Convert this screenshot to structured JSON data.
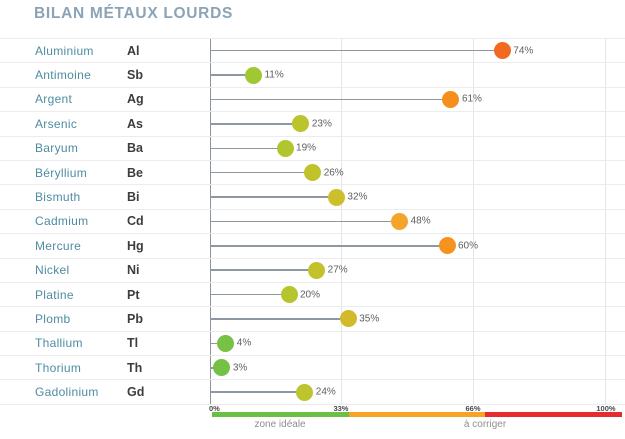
{
  "title": "BILAN MÉTAUX LOURDS",
  "colors": {
    "title": "#8ba3b4",
    "metal_name": "#4e8ca1",
    "metal_symbol": "#3d3d3d",
    "stem": "#8f98a0",
    "axis_line": "#8d969d"
  },
  "chart_data": {
    "type": "bar",
    "style": "horizontal lollipop / dot chart",
    "unit": "%",
    "xlim": [
      0,
      100
    ],
    "ticks": [
      "0%",
      "33%",
      "66%",
      "100%"
    ],
    "tick_values": [
      0,
      33,
      66,
      100
    ],
    "grid": "vertical gridlines at ticks",
    "rows": [
      {
        "name": "Aluminium",
        "symbol": "Al",
        "value": 74,
        "label": "74%",
        "color": "#f26a21"
      },
      {
        "name": "Antimoine",
        "symbol": "Sb",
        "value": 11,
        "label": "11%",
        "color": "#9fc832"
      },
      {
        "name": "Argent",
        "symbol": "Ag",
        "value": 61,
        "label": "61%",
        "color": "#f68e1e"
      },
      {
        "name": "Arsenic",
        "symbol": "As",
        "value": 23,
        "label": "23%",
        "color": "#bcc42d"
      },
      {
        "name": "Baryum",
        "symbol": "Ba",
        "value": 19,
        "label": "19%",
        "color": "#b2c52f"
      },
      {
        "name": "Béryllium",
        "symbol": "Be",
        "value": 26,
        "label": "26%",
        "color": "#c1c32c"
      },
      {
        "name": "Bismuth",
        "symbol": "Bi",
        "value": 32,
        "label": "32%",
        "color": "#cdbf2b"
      },
      {
        "name": "Cadmium",
        "symbol": "Cd",
        "value": 48,
        "label": "48%",
        "color": "#f2a52a"
      },
      {
        "name": "Mercure",
        "symbol": "Hg",
        "value": 60,
        "label": "60%",
        "color": "#f6921e"
      },
      {
        "name": "Nickel",
        "symbol": "Ni",
        "value": 27,
        "label": "27%",
        "color": "#c2c32c"
      },
      {
        "name": "Platine",
        "symbol": "Pt",
        "value": 20,
        "label": "20%",
        "color": "#b6c52e"
      },
      {
        "name": "Plomb",
        "symbol": "Pb",
        "value": 35,
        "label": "35%",
        "color": "#d2ba2a"
      },
      {
        "name": "Thallium",
        "symbol": "Tl",
        "value": 4,
        "label": "4%",
        "color": "#77c144"
      },
      {
        "name": "Thorium",
        "symbol": "Th",
        "value": 3,
        "label": "3%",
        "color": "#74c146"
      },
      {
        "name": "Gadolinium",
        "symbol": "Gd",
        "value": 24,
        "label": "24%",
        "color": "#bdc42d"
      }
    ],
    "scale": {
      "ideal_label": "zone idéale",
      "corriger_label": "à corriger",
      "colors": {
        "ideal": "#6abf44",
        "warning": "#f5a423",
        "danger": "#e72a2d"
      },
      "segments": [
        [
          0,
          33
        ],
        [
          33,
          66
        ],
        [
          66,
          100
        ]
      ],
      "legend_position": "bottom"
    }
  }
}
